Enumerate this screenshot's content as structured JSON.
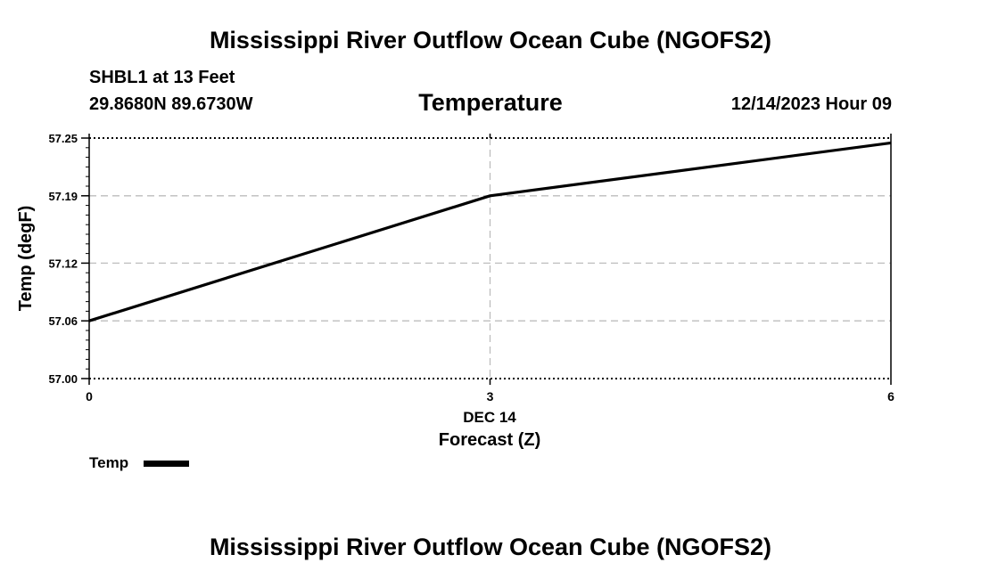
{
  "header": {
    "title": "Mississippi River Outflow Ocean Cube (NGOFS2)",
    "station": "SHBL1 at 13 Feet",
    "coords": "29.8680N  89.6730W",
    "variable": "Temperature",
    "datetime": "12/14/2023 Hour 09"
  },
  "footer": {
    "title": "Mississippi River Outflow Ocean Cube (NGOFS2)"
  },
  "chart_data": {
    "type": "line",
    "title": "Temperature",
    "xlabel": "Forecast (Z)",
    "ylabel": "Temp (degF)",
    "xlim": [
      0,
      6
    ],
    "ylim": [
      57.0,
      57.25
    ],
    "x_ticks": [
      0,
      3,
      6
    ],
    "x_tick_labels": [
      "0",
      "3",
      "6"
    ],
    "x_sublabel": "DEC 14",
    "y_ticks": [
      57.0,
      57.06,
      57.12,
      57.19,
      57.25
    ],
    "y_tick_labels": [
      "57.00",
      "57.06",
      "57.12",
      "57.19",
      "57.25"
    ],
    "grid": true,
    "series": [
      {
        "name": "Temp",
        "color": "#000000",
        "x": [
          0,
          3,
          6
        ],
        "values": [
          57.06,
          57.19,
          57.245
        ]
      }
    ]
  },
  "legend": {
    "label": "Temp"
  }
}
